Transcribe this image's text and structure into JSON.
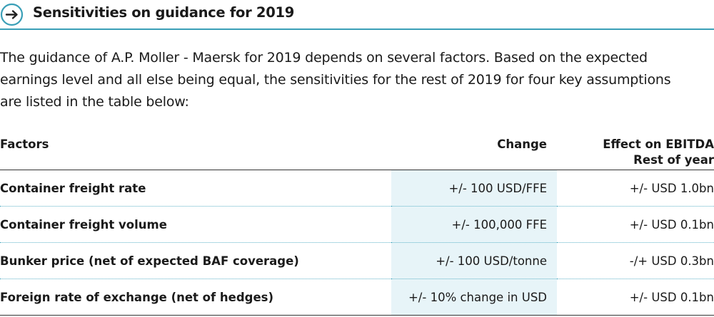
{
  "header": {
    "title": "Sensitivities on guidance for 2019",
    "icon": "arrow-right-circle-icon",
    "accent_color": "#3a9fb7"
  },
  "intro": {
    "lines": [
      "The guidance of A.P. Moller - Maersk for 2019 depends on several factors. Based on the expected",
      "earnings level and all else being equal, the sensitivities for the rest of 2019 for four key assumptions",
      "are listed in the table below:"
    ]
  },
  "table": {
    "headers": {
      "factors": "Factors",
      "change": "Change",
      "effect_line1": "Effect on EBITDA",
      "effect_line2": "Rest of year"
    },
    "rows": [
      {
        "factor": "Container freight rate",
        "change": "+/- 100 USD/FFE",
        "effect": "+/- USD 1.0bn"
      },
      {
        "factor": "Container freight volume",
        "change": "+/- 100,000 FFE",
        "effect": "+/- USD 0.1bn"
      },
      {
        "factor": "Bunker price (net of expected BAF coverage)",
        "change": "+/- 100 USD/tonne",
        "effect": "-/+ USD 0.3bn"
      },
      {
        "factor": "Foreign rate of exchange (net of hedges)",
        "change": "+/- 10% change in USD",
        "effect": "+/- USD 0.1bn"
      }
    ]
  }
}
